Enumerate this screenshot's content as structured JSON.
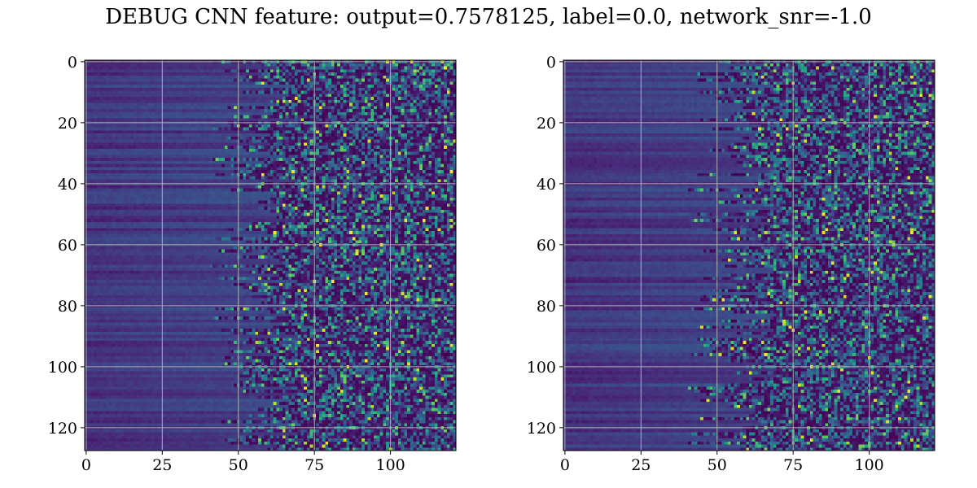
{
  "figure": {
    "title": "DEBUG CNN feature: output=0.7578125, label=0.0, network_snr=-1.0"
  },
  "chart_data": [
    {
      "type": "heatmap",
      "title": "",
      "xlabel": "",
      "ylabel": "",
      "xlim": [
        -0.5,
        121.5
      ],
      "ylim": [
        127.5,
        -0.5
      ],
      "n_rows": 128,
      "n_cols": 122,
      "x_ticks": [
        0,
        25,
        50,
        75,
        100
      ],
      "y_ticks": [
        0,
        20,
        40,
        60,
        80,
        100,
        120
      ],
      "grid": true,
      "colormap": "viridis",
      "value_range": [
        0,
        1
      ],
      "colormap_stops": [
        "#440154",
        "#482878",
        "#3e4989",
        "#31688e",
        "#26828e",
        "#1f9e89",
        "#35b779",
        "#6ece58",
        "#b5de2b",
        "#fde725"
      ],
      "seed": 7
    },
    {
      "type": "heatmap",
      "title": "",
      "xlabel": "",
      "ylabel": "",
      "xlim": [
        -0.5,
        121.5
      ],
      "ylim": [
        127.5,
        -0.5
      ],
      "n_rows": 128,
      "n_cols": 122,
      "x_ticks": [
        0,
        25,
        50,
        75,
        100
      ],
      "y_ticks": [
        0,
        20,
        40,
        60,
        80,
        100,
        120
      ],
      "grid": true,
      "colormap": "viridis",
      "value_range": [
        0,
        1
      ],
      "colormap_stops": [
        "#440154",
        "#482878",
        "#3e4989",
        "#31688e",
        "#26828e",
        "#1f9e89",
        "#35b779",
        "#6ece58",
        "#b5de2b",
        "#fde725"
      ],
      "seed": 19
    }
  ]
}
